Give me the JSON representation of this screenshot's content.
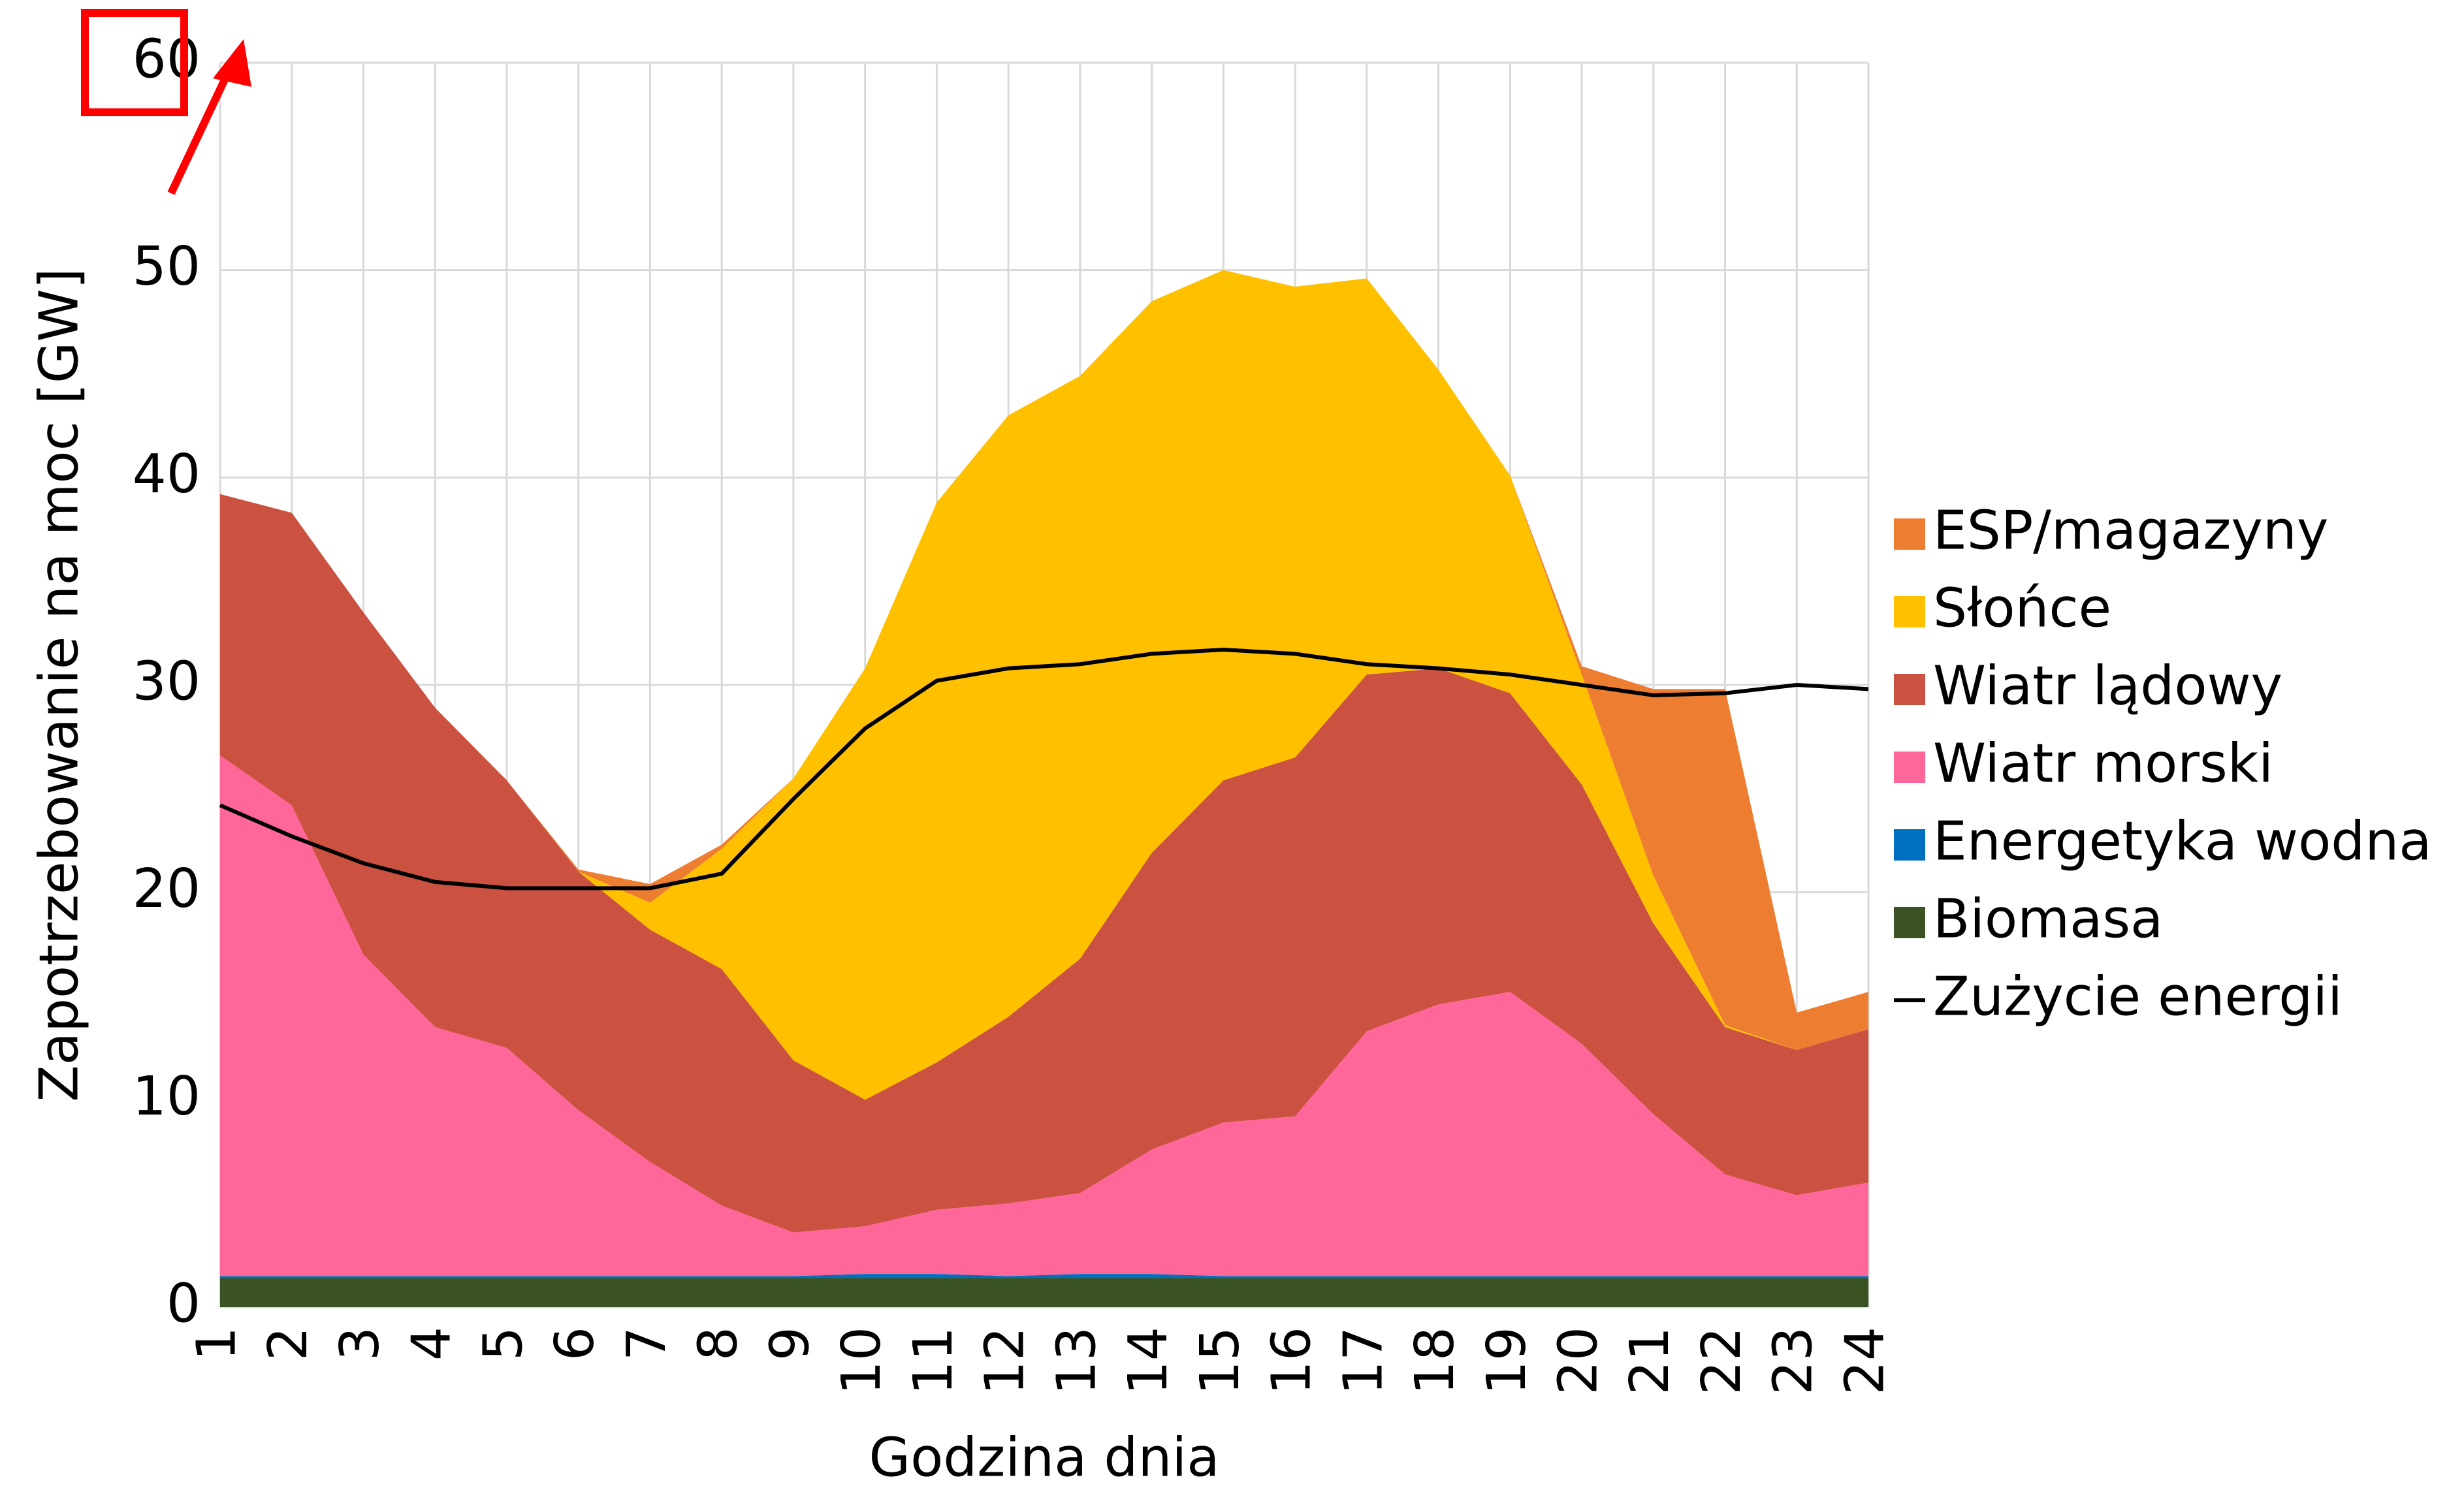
{
  "chart_data": {
    "type": "area",
    "stacked": true,
    "x_label": "Godzina dnia",
    "y_label": "Zapotrzebowanie na moc [GW]",
    "categories": [
      "1",
      "2",
      "3",
      "4",
      "5",
      "6",
      "7",
      "8",
      "9",
      "10",
      "11",
      "12",
      "13",
      "14",
      "15",
      "16",
      "17",
      "18",
      "19",
      "20",
      "21",
      "22",
      "23",
      "24"
    ],
    "ylim": [
      0,
      60
    ],
    "yticks": [
      0,
      10,
      20,
      30,
      40,
      50,
      60
    ],
    "grid": true,
    "legend": "right",
    "highlighted_tick": 6,
    "series": [
      {
        "name": "Biomasa",
        "color": "#3b5323",
        "values": [
          1.4,
          1.4,
          1.4,
          1.4,
          1.4,
          1.4,
          1.4,
          1.4,
          1.4,
          1.4,
          1.4,
          1.4,
          1.4,
          1.4,
          1.4,
          1.4,
          1.4,
          1.4,
          1.4,
          1.4,
          1.4,
          1.4,
          1.4,
          1.4
        ]
      },
      {
        "name": "Energetyka wodna",
        "color": "#0070c0",
        "values": [
          0.1,
          0.1,
          0.1,
          0.1,
          0.1,
          0.1,
          0.1,
          0.1,
          0.1,
          0.2,
          0.2,
          0.1,
          0.2,
          0.2,
          0.1,
          0.1,
          0.1,
          0.1,
          0.1,
          0.1,
          0.1,
          0.1,
          0.1,
          0.1
        ]
      },
      {
        "name": "Wiatr morski",
        "color": "#ff6699",
        "values": [
          25.1,
          22.7,
          15.5,
          12.0,
          11.0,
          8.0,
          5.5,
          3.4,
          2.1,
          2.3,
          3.1,
          3.5,
          3.9,
          6.0,
          7.4,
          7.7,
          11.8,
          13.1,
          13.7,
          11.2,
          7.8,
          4.9,
          3.9,
          4.5
        ]
      },
      {
        "name": "Wiatr lądowy",
        "color": "#cb5140",
        "values": [
          12.6,
          14.1,
          16.5,
          15.4,
          12.9,
          11.5,
          11.2,
          11.4,
          8.3,
          6.1,
          7.1,
          9.0,
          11.3,
          14.3,
          16.5,
          17.3,
          17.2,
          16.2,
          14.4,
          12.5,
          9.2,
          7.1,
          7.0,
          7.4
        ]
      },
      {
        "name": "Słońce",
        "color": "#ffc000",
        "values": [
          0,
          0,
          0,
          0,
          0,
          0,
          1.3,
          5.8,
          13.6,
          20.8,
          27.0,
          29.0,
          28.1,
          26.6,
          24.6,
          22.7,
          19.1,
          14.4,
          10.5,
          5.3,
          2.3,
          0.1,
          0,
          0
        ]
      },
      {
        "name": "ESP/magazyny",
        "color": "#ed7d31",
        "values": [
          0,
          0,
          0,
          0,
          0,
          0.1,
          0.9,
          0.2,
          0,
          0,
          0,
          0,
          0,
          0,
          0,
          0,
          0,
          0,
          0,
          0.4,
          9.0,
          16.2,
          1.8,
          1.8
        ]
      }
    ],
    "line": {
      "name": "Zużycie energii",
      "color": "#000000",
      "values": [
        24.2,
        22.7,
        21.4,
        20.5,
        20.2,
        20.2,
        20.2,
        20.9,
        24.5,
        27.9,
        30.2,
        30.8,
        31.0,
        31.5,
        31.7,
        31.5,
        31.0,
        30.8,
        30.5,
        30.0,
        29.5,
        29.6,
        30.0,
        29.8
      ]
    }
  }
}
